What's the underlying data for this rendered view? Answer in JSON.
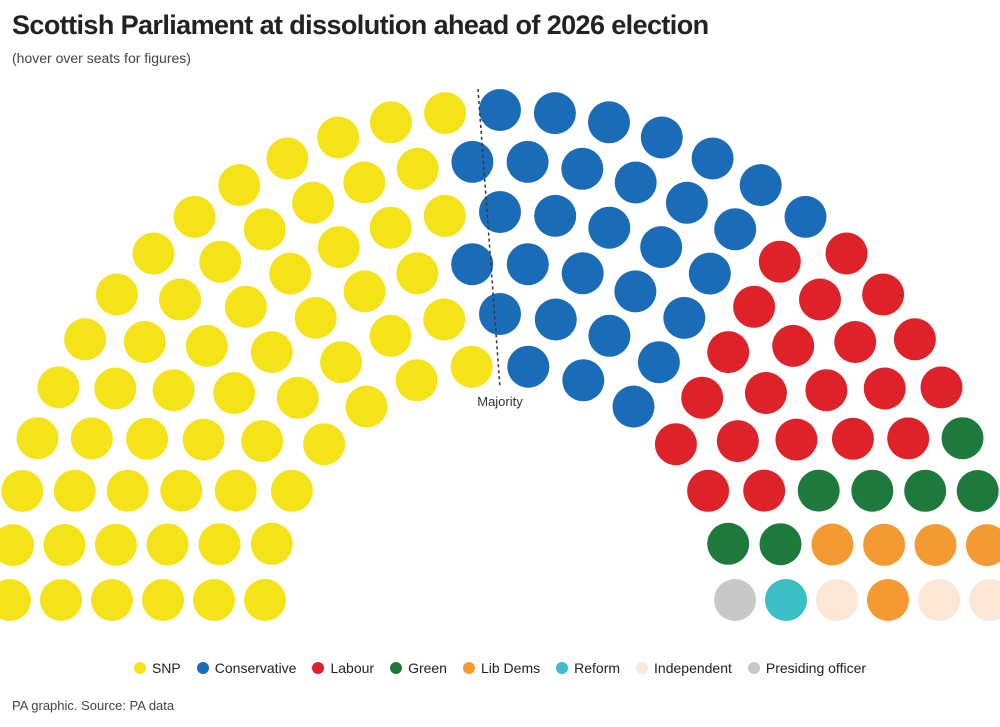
{
  "title": "Scottish Parliament at dissolution ahead of 2026 election",
  "subtitle": "(hover over seats for figures)",
  "source": "PA graphic. Source: PA data",
  "chart_data": {
    "type": "parliament",
    "majority_label": "Majority",
    "total_seats": 129,
    "series": [
      {
        "name": "SNP",
        "seats": 61,
        "color": "#f5e319"
      },
      {
        "name": "Conservative",
        "seats": 30,
        "color": "#1b6cb8"
      },
      {
        "name": "Labour",
        "seats": 21,
        "color": "#dd2229"
      },
      {
        "name": "Green",
        "seats": 7,
        "color": "#1d7a3c"
      },
      {
        "name": "Lib Dems",
        "seats": 5,
        "color": "#f59a33"
      },
      {
        "name": "Reform",
        "seats": 1,
        "color": "#3cbfc4"
      },
      {
        "name": "Independent",
        "seats": 3,
        "color": "#fce6d6"
      },
      {
        "name": "Presiding officer",
        "seats": 1,
        "color": "#c8c8c8"
      }
    ]
  }
}
